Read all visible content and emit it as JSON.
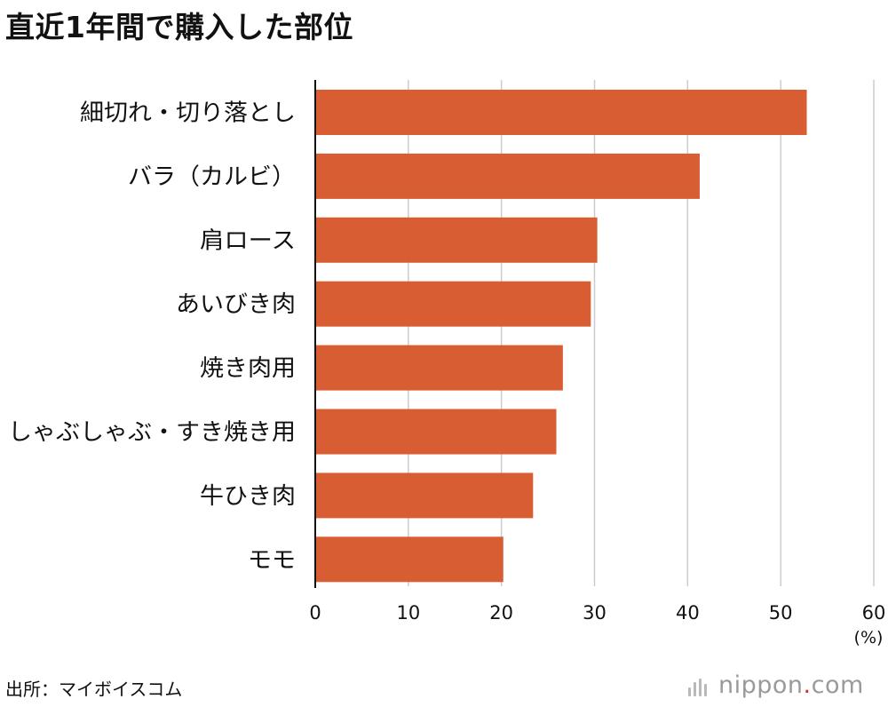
{
  "title": "直近1年間で購入した部位",
  "source": "出所：マイボイスコム",
  "logo": {
    "name": "nippon",
    "dot": ".",
    "tld": "com"
  },
  "colors": {
    "bar": "#d95d33",
    "grid": "#cccccc",
    "axis": "#111111",
    "text": "#111111"
  },
  "chart_data": {
    "type": "bar",
    "orientation": "horizontal",
    "categories": [
      "細切れ・切り落とし",
      "バラ（カルビ）",
      "肩ロース",
      "あいびき肉",
      "焼き肉用",
      "しゃぶしゃぶ・すき焼き用",
      "牛ひき肉",
      "モモ"
    ],
    "values": [
      52.8,
      41.3,
      30.3,
      29.6,
      26.6,
      25.9,
      23.4,
      20.2
    ],
    "xlim": [
      0,
      60
    ],
    "ticks": [
      0,
      10,
      20,
      30,
      40,
      50,
      60
    ],
    "unit_label": "(%)",
    "grid": true
  }
}
